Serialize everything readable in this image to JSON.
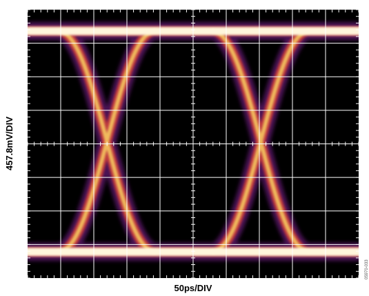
{
  "axes": {
    "y_label": "457.8mV/DIV",
    "x_label": "50ps/DIV"
  },
  "figure_id": "05970-033"
}
